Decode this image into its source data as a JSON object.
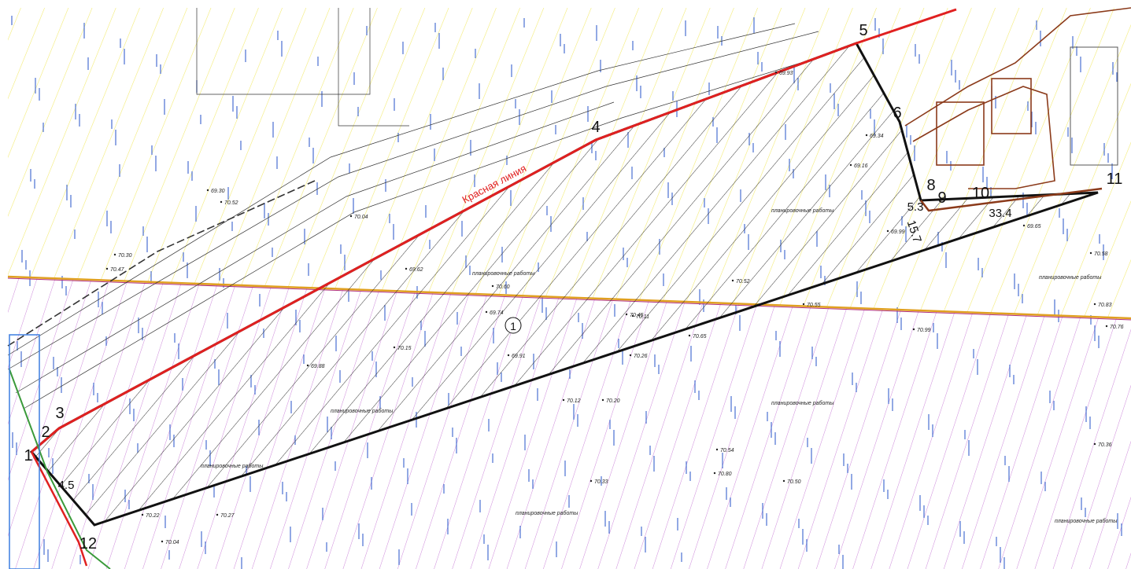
{
  "map": {
    "red_line_label": "Красная линия",
    "parcel_label": "1",
    "points": [
      "1",
      "2",
      "3",
      "4",
      "5",
      "6",
      "8",
      "9",
      "10",
      "11",
      "12"
    ],
    "dimensions": [
      "5.3",
      "15.7",
      "33.4",
      "4.5"
    ],
    "work_labels": [
      "планировочные работы",
      "планировочные работы",
      "планировочные работы",
      "планировочные работы",
      "планировочные работы",
      "планировочные работы",
      "планировочные работы",
      "планировочные работы"
    ],
    "elevations": [
      "70.47",
      "70.30",
      "69.30",
      "70.52",
      "69.62",
      "70.04",
      "69.88",
      "70.15",
      "70.12",
      "70.20",
      "70.33",
      "70.55",
      "70.65",
      "70.99",
      "70.26",
      "70.45",
      "70.60",
      "69.74",
      "69.91",
      "70.11",
      "70.52",
      "70.83",
      "70.76",
      "70.58",
      "69.65",
      "69.93",
      "69.34",
      "69.16",
      "69.99",
      "70.27",
      "70.54",
      "70.80",
      "70.50",
      "70.36",
      "70.22",
      "70.04"
    ]
  }
}
